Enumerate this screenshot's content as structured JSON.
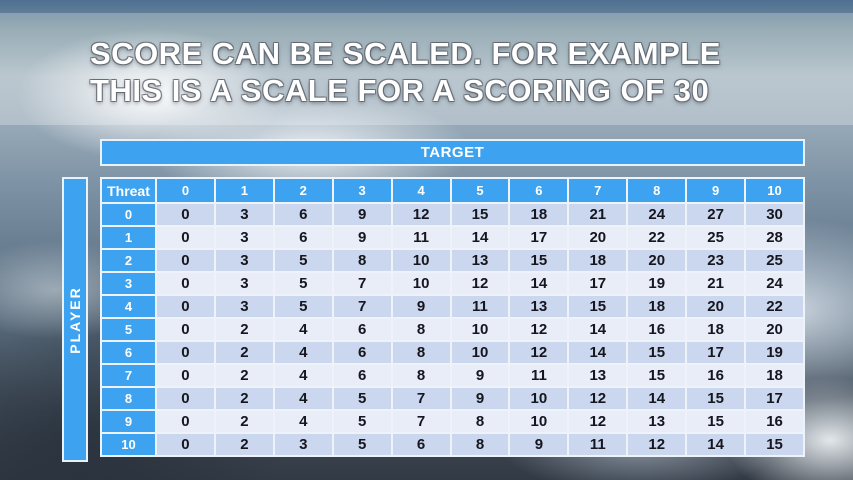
{
  "slide": {
    "title_line1": "SCORE CAN BE SCALED. FOR EXAMPLE",
    "title_line2": "THIS IS A SCALE FOR A SCORING OF 30"
  },
  "table": {
    "target_label": "TARGET",
    "player_label": "PLAYER",
    "corner_label": "Threat",
    "col_headers": [
      "0",
      "1",
      "2",
      "3",
      "4",
      "5",
      "6",
      "7",
      "8",
      "9",
      "10"
    ],
    "rows": [
      {
        "header": "0",
        "cells": [
          0,
          3,
          6,
          9,
          12,
          15,
          18,
          21,
          24,
          27,
          30
        ]
      },
      {
        "header": "1",
        "cells": [
          0,
          3,
          6,
          9,
          11,
          14,
          17,
          20,
          22,
          25,
          28
        ]
      },
      {
        "header": "2",
        "cells": [
          0,
          3,
          5,
          8,
          10,
          13,
          15,
          18,
          20,
          23,
          25
        ]
      },
      {
        "header": "3",
        "cells": [
          0,
          3,
          5,
          7,
          10,
          12,
          14,
          17,
          19,
          21,
          24
        ]
      },
      {
        "header": "4",
        "cells": [
          0,
          3,
          5,
          7,
          9,
          11,
          13,
          15,
          18,
          20,
          22
        ]
      },
      {
        "header": "5",
        "cells": [
          0,
          2,
          4,
          6,
          8,
          10,
          12,
          14,
          16,
          18,
          20
        ]
      },
      {
        "header": "6",
        "cells": [
          0,
          2,
          4,
          6,
          8,
          10,
          12,
          14,
          15,
          17,
          19
        ]
      },
      {
        "header": "7",
        "cells": [
          0,
          2,
          4,
          6,
          8,
          9,
          11,
          13,
          15,
          16,
          18
        ]
      },
      {
        "header": "8",
        "cells": [
          0,
          2,
          4,
          5,
          7,
          9,
          10,
          12,
          14,
          15,
          17
        ]
      },
      {
        "header": "9",
        "cells": [
          0,
          2,
          4,
          5,
          7,
          8,
          10,
          12,
          13,
          15,
          16
        ]
      },
      {
        "header": "10",
        "cells": [
          0,
          2,
          3,
          5,
          6,
          8,
          9,
          11,
          12,
          14,
          15
        ]
      }
    ]
  },
  "colors": {
    "accent_blue": "#3da3f0",
    "row_even": "#cbd7ef",
    "row_odd": "#e8edf8",
    "cell_text": "#16161e"
  }
}
